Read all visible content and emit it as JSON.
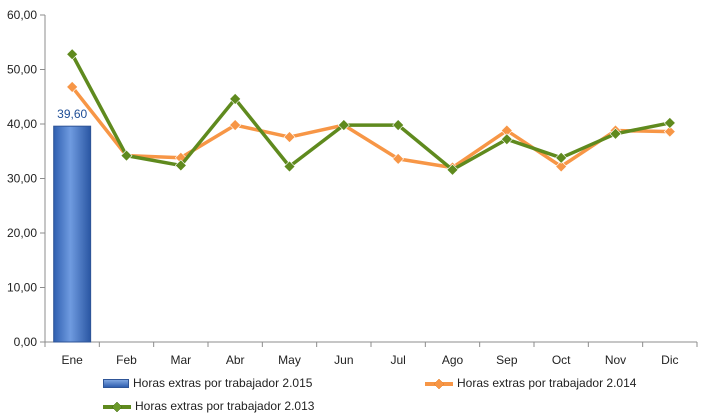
{
  "chart_data": {
    "type": "bar+line",
    "categories": [
      "Ene",
      "Feb",
      "Mar",
      "Abr",
      "May",
      "Jun",
      "Jul",
      "Ago",
      "Sep",
      "Oct",
      "Nov",
      "Dic"
    ],
    "ylim": [
      0,
      60
    ],
    "yticks": [
      "0,00",
      "10,00",
      "20,00",
      "30,00",
      "40,00",
      "50,00",
      "60,00"
    ],
    "grid": false,
    "legend_position": "bottom",
    "series": [
      {
        "name": "Horas extras por trabajador 2.015",
        "type": "bar",
        "color": "#4472c4",
        "values": [
          39.6,
          null,
          null,
          null,
          null,
          null,
          null,
          null,
          null,
          null,
          null,
          null
        ],
        "data_labels": [
          "39,60"
        ]
      },
      {
        "name": "Horas extras por trabajador 2.014",
        "type": "line",
        "color": "#f79646",
        "values": [
          46.8,
          34.2,
          33.8,
          39.8,
          37.6,
          39.8,
          33.6,
          32.0,
          38.8,
          32.2,
          38.8,
          38.6
        ]
      },
      {
        "name": "Horas extras por trabajador 2.013",
        "type": "line",
        "color": "#5f8a1e",
        "values": [
          52.8,
          34.2,
          32.4,
          44.6,
          32.2,
          39.8,
          39.8,
          31.6,
          37.2,
          33.8,
          38.2,
          40.2
        ]
      }
    ]
  }
}
